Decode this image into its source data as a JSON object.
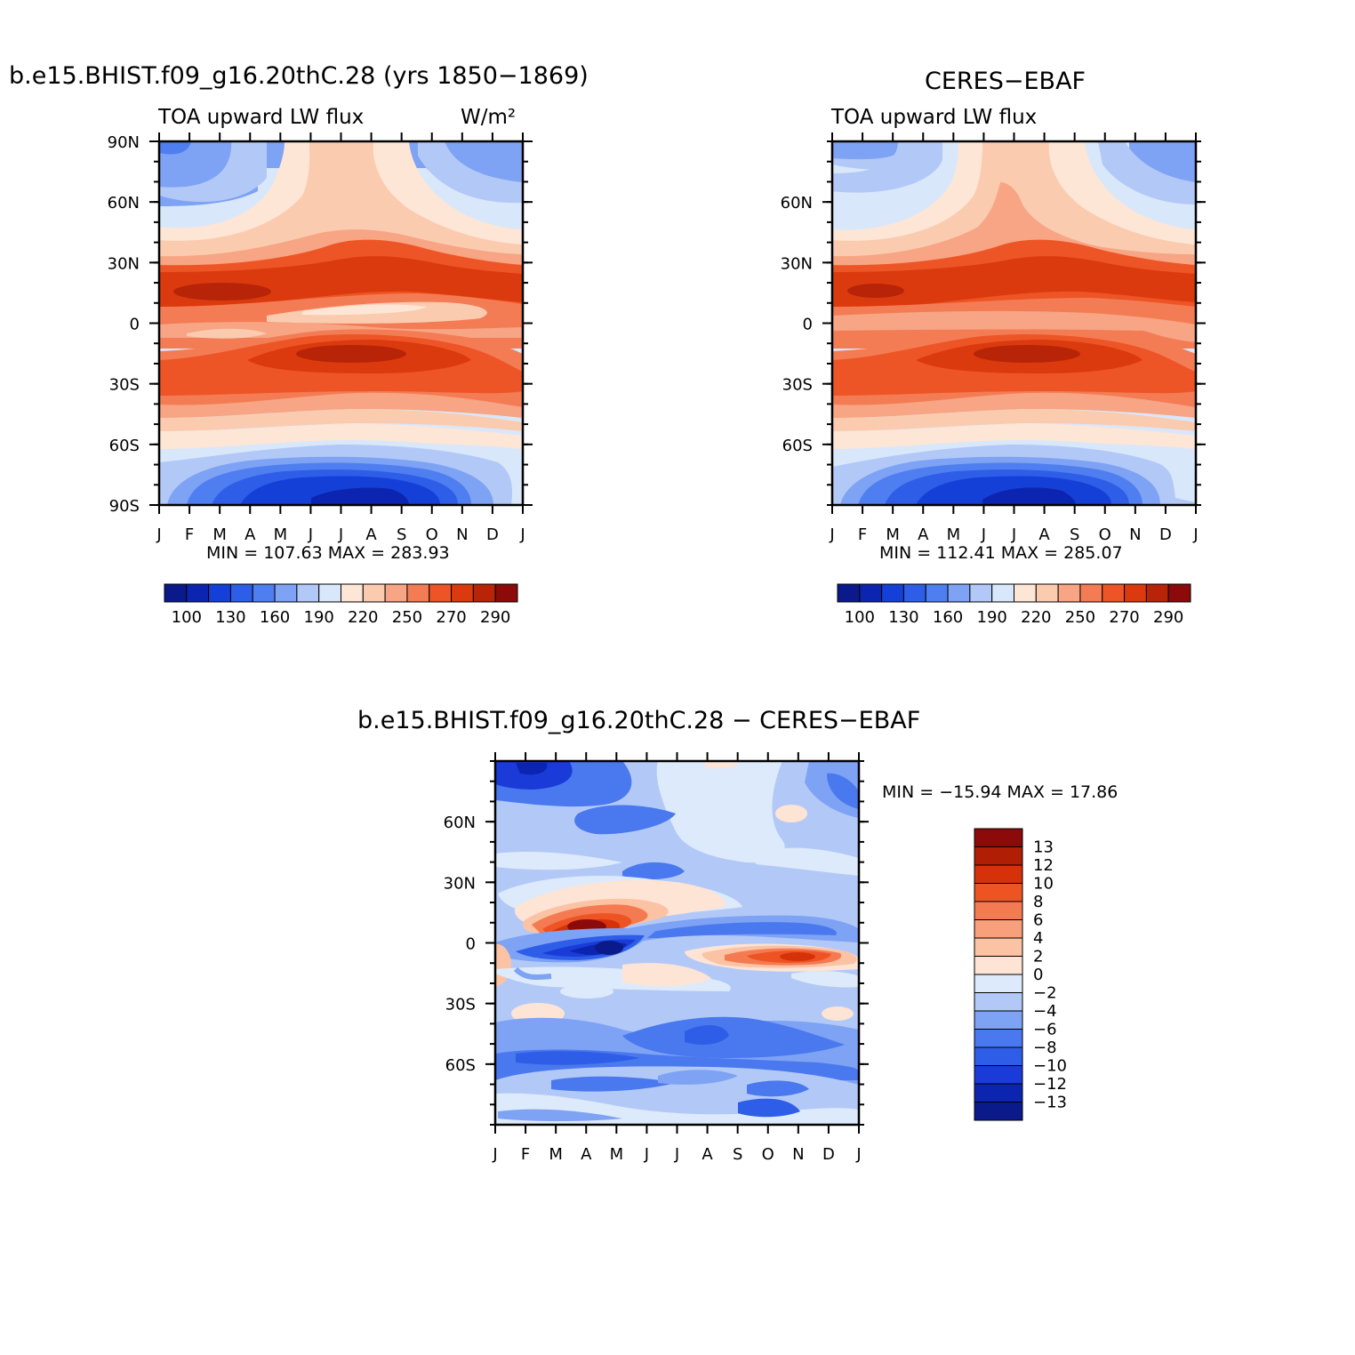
{
  "panels": {
    "left": {
      "title": "b.e15.BHIST.f09_g16.20thC.28 (yrs 1850−1869)",
      "variable": "TOA upward LW flux",
      "units": "W/m²",
      "minmax": "MIN = 107.63 MAX = 283.93"
    },
    "right": {
      "title": "CERES−EBAF",
      "variable": "TOA upward LW flux",
      "minmax": "MIN = 112.41 MAX = 285.07"
    },
    "diff": {
      "title": "b.e15.BHIST.f09_g16.20thC.28 − CERES−EBAF",
      "minmax": "MIN = −15.94 MAX =   17.86"
    }
  },
  "chart_data": [
    {
      "type": "heatmap",
      "title": "b.e15.BHIST.f09_g16.20thC.28 (yrs 1850−1869)",
      "subtitle": "TOA upward LW flux",
      "units": "W/m²",
      "x": [
        "J",
        "F",
        "M",
        "A",
        "M",
        "J",
        "J",
        "A",
        "S",
        "O",
        "N",
        "D",
        "J"
      ],
      "y_ticks": [
        "90N",
        "60N",
        "30N",
        "0",
        "30S",
        "60S",
        "90S"
      ],
      "ylim": [
        -90,
        90
      ],
      "levels": [
        100,
        115,
        130,
        145,
        160,
        175,
        190,
        205,
        220,
        235,
        250,
        260,
        270,
        280,
        290
      ],
      "level_labels": [
        "100",
        "130",
        "160",
        "190",
        "220",
        "250",
        "270",
        "290"
      ],
      "min": 107.63,
      "max": 283.93
    },
    {
      "type": "heatmap",
      "title": "CERES−EBAF",
      "subtitle": "TOA upward LW flux",
      "x": [
        "J",
        "F",
        "M",
        "A",
        "M",
        "J",
        "J",
        "A",
        "S",
        "O",
        "N",
        "D",
        "J"
      ],
      "y_ticks": [
        "60N",
        "30N",
        "0",
        "30S",
        "60S"
      ],
      "ylim": [
        -90,
        90
      ],
      "levels": [
        100,
        115,
        130,
        145,
        160,
        175,
        190,
        205,
        220,
        235,
        250,
        260,
        270,
        280,
        290
      ],
      "level_labels": [
        "100",
        "130",
        "160",
        "190",
        "220",
        "250",
        "270",
        "290"
      ],
      "min": 112.41,
      "max": 285.07
    },
    {
      "type": "heatmap",
      "title": "b.e15.BHIST.f09_g16.20thC.28 − CERES−EBAF",
      "x": [
        "J",
        "F",
        "M",
        "A",
        "M",
        "J",
        "J",
        "A",
        "S",
        "O",
        "N",
        "D",
        "J"
      ],
      "y_ticks": [
        "60N",
        "30N",
        "0",
        "30S",
        "60S"
      ],
      "ylim": [
        -90,
        90
      ],
      "level_labels": [
        "13",
        "12",
        "10",
        "8",
        "6",
        "4",
        "2",
        "0",
        "−2",
        "−4",
        "−6",
        "−8",
        "−10",
        "−12",
        "−13"
      ],
      "min": -15.94,
      "max": 17.86
    }
  ],
  "colors": {
    "abs_palette": [
      "#0a1a8a",
      "#0c25b0",
      "#1440d8",
      "#2e5ee8",
      "#4f7ef0",
      "#7ea2f4",
      "#b2c9f8",
      "#d9e7fb",
      "#fde6d6",
      "#fbcbb0",
      "#f7a584",
      "#f47c55",
      "#ee5526",
      "#db3a0e",
      "#b82408",
      "#8c0a0a"
    ],
    "diff_palette": [
      "#0a1a8a",
      "#0c25b0",
      "#1a3bd8",
      "#2e5ee8",
      "#4a78ee",
      "#7ea2f4",
      "#b2c9f8",
      "#ddeafb",
      "#fde4d4",
      "#fbc2a4",
      "#f8a07c",
      "#f47a52",
      "#ee5324",
      "#d6320a",
      "#b01e06",
      "#8c0a0a"
    ]
  }
}
